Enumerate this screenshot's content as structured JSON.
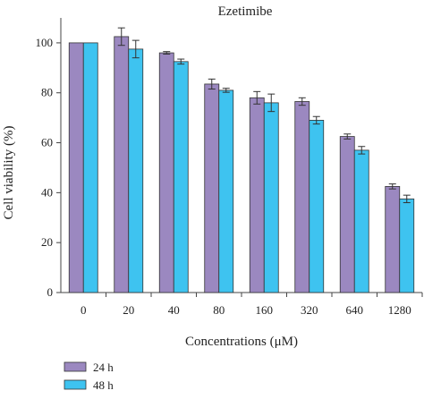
{
  "chart_data": {
    "type": "bar",
    "title": "Ezetimibe",
    "xlabel": "Concentrations (μM)",
    "ylabel": "Cell viability (%)",
    "ylim": [
      0,
      110
    ],
    "yticks": [
      "0",
      "20",
      "40",
      "60",
      "80",
      "100"
    ],
    "categories": [
      "0",
      "20",
      "40",
      "80",
      "160",
      "320",
      "640",
      "1280"
    ],
    "series": [
      {
        "name": "24 h",
        "color": "#9B88C0",
        "values": [
          100,
          102.5,
          96,
          83.5,
          78,
          76.5,
          62.5,
          42.5
        ],
        "errors": [
          0,
          3.5,
          0.5,
          2,
          2.5,
          1.5,
          1,
          1
        ]
      },
      {
        "name": "48 h",
        "color": "#3EC3F0",
        "values": [
          100,
          97.5,
          92.5,
          81,
          76,
          69,
          57,
          37.5
        ],
        "errors": [
          0,
          3.5,
          1,
          0.8,
          3.5,
          1.5,
          1.5,
          1.5
        ]
      }
    ],
    "legend_position": "bottom-left"
  }
}
